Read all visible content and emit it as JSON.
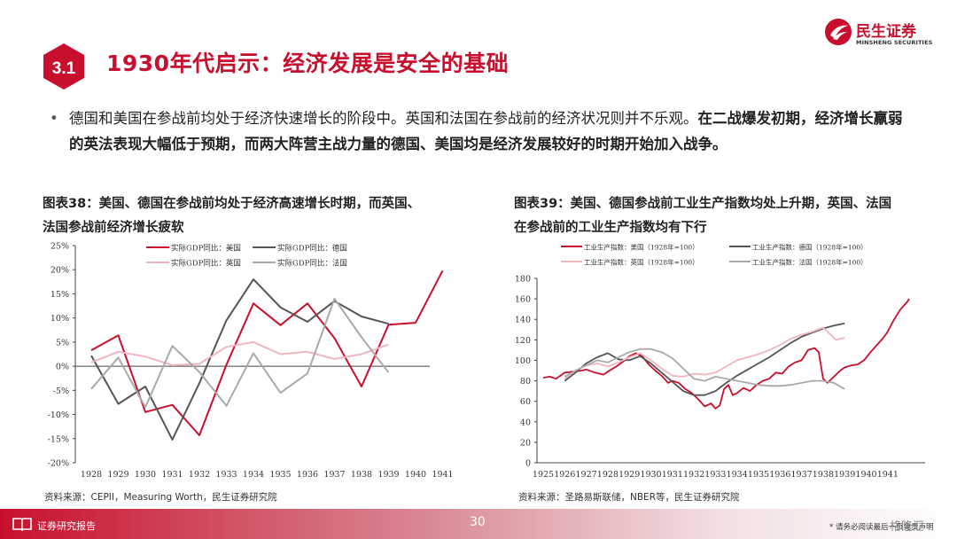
{
  "header": {
    "section_number": "3.1",
    "title": "1930年代启示：经济发展是安全的基础",
    "logo_cn": "民生证券",
    "logo_en": "MINSHENG SECURITIES"
  },
  "bullet": {
    "normal": "德国和美国在参战前均处于经济快速增长的阶段中。英国和法国在参战前的经济状况则并不乐观。",
    "bold": "在二战爆发初期，经济增长羸弱的英法表现大幅低于预期，而两大阵营主战力量的德国、美国均是经济发展较好的时期开始加入战争。"
  },
  "chart_left": {
    "title_line1": "图表38：美国、德国在参战前均处于经济高速增长时期，而英国、",
    "title_line2": "法国参战前经济增长疲软",
    "source": "资料来源：CEPII，Measuring Worth，民生证券研究院"
  },
  "chart_right": {
    "title_line1": "图表39：美国、德国参战前工业生产指数均处上升期，英国、法国",
    "title_line2": "在参战前的工业生产指数均有下行",
    "source": "资料来源：圣路易斯联储，NBER等，民生证券研究院"
  },
  "chart_data": [
    {
      "type": "line",
      "x": [
        1928,
        1929,
        1930,
        1931,
        1932,
        1933,
        1934,
        1935,
        1936,
        1937,
        1938,
        1939,
        1940,
        1941
      ],
      "ylim": [
        -20,
        25
      ],
      "yticks": [
        "25%",
        "20%",
        "15%",
        "10%",
        "5%",
        "0%",
        "-5%",
        "-10%",
        "-15%",
        "-20%"
      ],
      "ytick_values": [
        25,
        20,
        15,
        10,
        5,
        0,
        -5,
        -10,
        -15,
        -20
      ],
      "xticks": [
        "1928",
        "1929",
        "1930",
        "1931",
        "1932",
        "1933",
        "1934",
        "1935",
        "1936",
        "1937",
        "1938",
        "1939",
        "1940",
        "1941"
      ],
      "grid": false,
      "legend_position": "top",
      "series": [
        {
          "name": "实际GDP同比：美国",
          "color": "#c8102e",
          "values": [
            3.3,
            6.4,
            -9.5,
            -8.0,
            -14.3,
            0.3,
            13.0,
            8.5,
            13.0,
            5.8,
            -4.2,
            8.6,
            9.0,
            19.8
          ]
        },
        {
          "name": "实际GDP同比：德国",
          "color": "#555555",
          "values": [
            2.2,
            -7.8,
            -4.2,
            -15.2,
            -3.5,
            9.5,
            18.0,
            12.2,
            9.2,
            13.5,
            10.3,
            8.8,
            null,
            null
          ]
        },
        {
          "name": "实际GDP同比：英国",
          "color": "#f0b6bf",
          "values": [
            0.8,
            3.0,
            2.0,
            0.2,
            0.5,
            4.0,
            5.0,
            2.5,
            3.0,
            1.5,
            2.5,
            4.5,
            null,
            null
          ]
        },
        {
          "name": "实际GDP同比：法国",
          "color": "#a9a9a9",
          "values": [
            -4.7,
            1.8,
            -8.5,
            4.2,
            -1.2,
            -8.2,
            2.7,
            -5.5,
            -1.5,
            14.0,
            6.0,
            -1.3,
            null,
            null
          ]
        }
      ]
    },
    {
      "type": "line",
      "ylim": [
        0,
        180
      ],
      "yticks": [
        "0",
        "20",
        "40",
        "60",
        "80",
        "100",
        "120",
        "140",
        "160",
        "180"
      ],
      "ytick_values": [
        0,
        20,
        40,
        60,
        80,
        100,
        120,
        140,
        160,
        180
      ],
      "xticks": [
        "1925",
        "1926",
        "1927",
        "1928",
        "1929",
        "1930",
        "1931",
        "1932",
        "1933",
        "1934",
        "1935",
        "1936",
        "1937",
        "1938",
        "1939",
        "1940",
        "1941"
      ],
      "xlim": [
        1925,
        1942
      ],
      "grid": false,
      "legend_position": "top",
      "series": [
        {
          "name": "工业生产指数：美国（1928年=100）",
          "color": "#c8102e",
          "x": [
            1925,
            1925.3,
            1925.6,
            1926,
            1926.4,
            1926.8,
            1927,
            1927.4,
            1927.8,
            1928,
            1928.4,
            1928.8,
            1929,
            1929.3,
            1929.6,
            1929.9,
            1930.2,
            1930.5,
            1930.8,
            1931,
            1931.3,
            1931.6,
            1931.9,
            1932.2,
            1932.5,
            1932.8,
            1933,
            1933.2,
            1933.4,
            1933.6,
            1933.8,
            1934,
            1934.3,
            1934.6,
            1934.9,
            1935.2,
            1935.5,
            1935.8,
            1936.1,
            1936.4,
            1936.7,
            1937,
            1937.3,
            1937.6,
            1937.8,
            1938,
            1938.2,
            1938.5,
            1938.8,
            1939,
            1939.3,
            1939.6,
            1939.9,
            1940.2,
            1940.5,
            1940.8,
            1941,
            1941.3,
            1941.6,
            1941.9,
            1942
          ],
          "values": [
            83,
            84,
            82,
            88,
            89,
            90,
            91,
            88,
            86,
            89,
            94,
            100,
            104,
            107,
            104,
            96,
            90,
            85,
            78,
            80,
            78,
            72,
            68,
            62,
            55,
            58,
            53,
            56,
            72,
            76,
            66,
            68,
            73,
            70,
            76,
            80,
            82,
            88,
            87,
            94,
            98,
            100,
            110,
            112,
            108,
            82,
            78,
            84,
            90,
            93,
            95,
            96,
            100,
            108,
            115,
            122,
            128,
            140,
            150,
            157,
            160
          ]
        },
        {
          "name": "工业生产指数：德国（1928年=100）",
          "color": "#555555",
          "x": [
            1926,
            1926.5,
            1927,
            1927.5,
            1928,
            1928.5,
            1929,
            1929.5,
            1930,
            1930.5,
            1931,
            1931.5,
            1932,
            1932.5,
            1933,
            1933.5,
            1934,
            1934.5,
            1935,
            1935.5,
            1936,
            1936.5,
            1937,
            1937.5,
            1938,
            1938.5,
            1939
          ],
          "values": [
            80,
            88,
            97,
            103,
            107,
            101,
            100,
            104,
            97,
            88,
            79,
            70,
            66,
            66,
            70,
            78,
            85,
            91,
            97,
            103,
            110,
            117,
            123,
            127,
            131,
            134,
            136
          ]
        },
        {
          "name": "工业生产指数：英国（1928年=100）",
          "color": "#f0b6bf",
          "x": [
            1926,
            1926.5,
            1927,
            1927.5,
            1928,
            1928.5,
            1929,
            1929.5,
            1930,
            1930.5,
            1931,
            1931.5,
            1932,
            1932.5,
            1933,
            1933.5,
            1934,
            1934.5,
            1935,
            1935.5,
            1936,
            1936.5,
            1937,
            1937.5,
            1938,
            1938.3,
            1938.6,
            1939
          ],
          "values": [
            82,
            90,
            95,
            97,
            94,
            98,
            103,
            107,
            100,
            92,
            85,
            84,
            87,
            86,
            88,
            94,
            100,
            103,
            106,
            110,
            115,
            121,
            125,
            128,
            132,
            126,
            120,
            122
          ]
        },
        {
          "name": "工业生产指数：法国（1928年=100）",
          "color": "#a9a9a9",
          "x": [
            1926,
            1926.5,
            1927,
            1927.5,
            1928,
            1928.5,
            1929,
            1929.5,
            1930,
            1930.5,
            1931,
            1931.5,
            1932,
            1932.5,
            1933,
            1933.5,
            1934,
            1934.5,
            1935,
            1935.5,
            1936,
            1936.5,
            1937,
            1937.5,
            1938,
            1938.5,
            1939
          ],
          "values": [
            84,
            90,
            95,
            100,
            98,
            103,
            108,
            111,
            111,
            108,
            102,
            92,
            82,
            80,
            84,
            82,
            80,
            78,
            76,
            75,
            75,
            76,
            78,
            80,
            80,
            78,
            72
          ]
        }
      ]
    }
  ],
  "footer": {
    "label": "证券研究报告",
    "page": "30",
    "note": "* 请务必阅读最后一页免责声明",
    "watermark": "格隆汇"
  }
}
